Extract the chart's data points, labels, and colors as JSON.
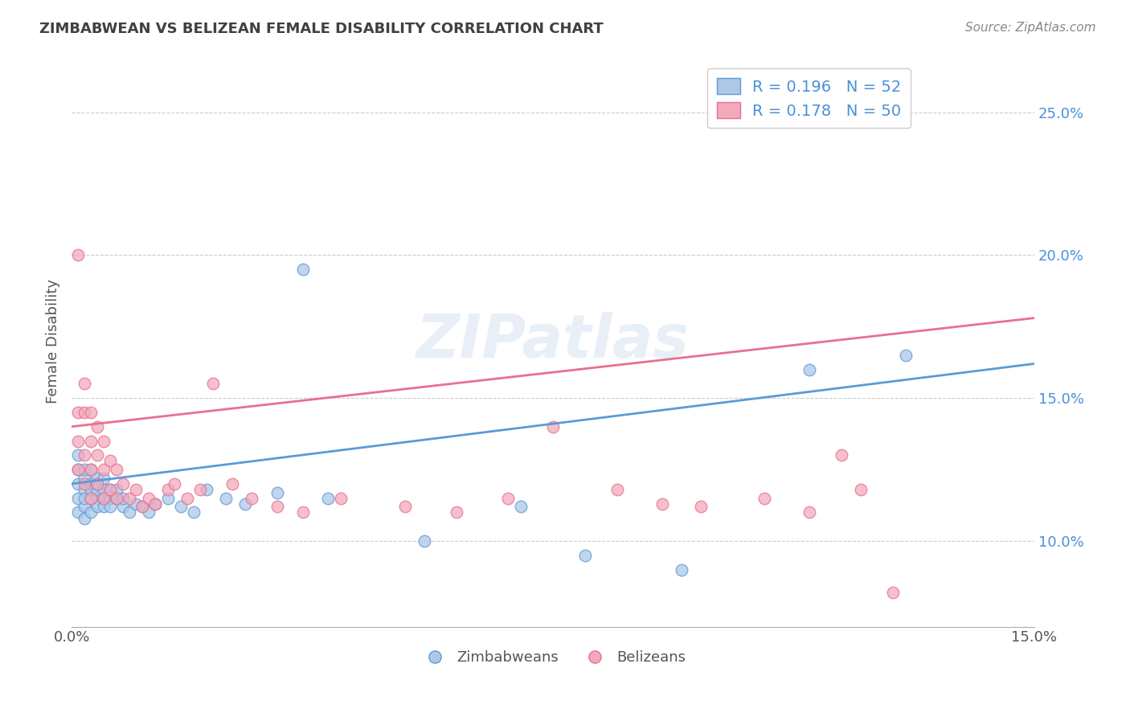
{
  "title": "ZIMBABWEAN VS BELIZEAN FEMALE DISABILITY CORRELATION CHART",
  "source": "Source: ZipAtlas.com",
  "ylabel": "Female Disability",
  "xlim": [
    0.0,
    0.15
  ],
  "ylim": [
    0.07,
    0.27
  ],
  "xticks": [
    0.0,
    0.03,
    0.06,
    0.09,
    0.12,
    0.15
  ],
  "xticklabels": [
    "0.0%",
    "",
    "",
    "",
    "",
    "15.0%"
  ],
  "yticks_right": [
    0.1,
    0.15,
    0.2,
    0.25
  ],
  "ytick_labels_right": [
    "10.0%",
    "15.0%",
    "20.0%",
    "25.0%"
  ],
  "legend_R1": "R = 0.196",
  "legend_N1": "N = 52",
  "legend_R2": "R = 0.178",
  "legend_N2": "N = 50",
  "color_blue": "#adc8e8",
  "color_pink": "#f2aabb",
  "color_blue_line": "#5b9bd5",
  "color_pink_line": "#e87090",
  "color_text_blue": "#4a90d9",
  "title_color": "#404040",
  "source_color": "#888888",
  "background_color": "#ffffff",
  "grid_color": "#cccccc",
  "watermark": "ZIPatlas",
  "blue_x": [
    0.001,
    0.001,
    0.001,
    0.001,
    0.001,
    0.002,
    0.002,
    0.002,
    0.002,
    0.002,
    0.002,
    0.003,
    0.003,
    0.003,
    0.003,
    0.003,
    0.004,
    0.004,
    0.004,
    0.004,
    0.004,
    0.005,
    0.005,
    0.005,
    0.005,
    0.006,
    0.006,
    0.006,
    0.007,
    0.007,
    0.008,
    0.008,
    0.009,
    0.01,
    0.011,
    0.012,
    0.013,
    0.015,
    0.017,
    0.019,
    0.021,
    0.024,
    0.027,
    0.032,
    0.036,
    0.04,
    0.055,
    0.07,
    0.08,
    0.095,
    0.115,
    0.13
  ],
  "blue_y": [
    0.12,
    0.125,
    0.115,
    0.11,
    0.13,
    0.122,
    0.118,
    0.125,
    0.112,
    0.108,
    0.115,
    0.12,
    0.115,
    0.125,
    0.11,
    0.118,
    0.122,
    0.115,
    0.118,
    0.112,
    0.12,
    0.115,
    0.112,
    0.118,
    0.122,
    0.115,
    0.118,
    0.112,
    0.115,
    0.118,
    0.112,
    0.115,
    0.11,
    0.113,
    0.112,
    0.11,
    0.113,
    0.115,
    0.112,
    0.11,
    0.118,
    0.115,
    0.113,
    0.117,
    0.195,
    0.115,
    0.1,
    0.112,
    0.095,
    0.09,
    0.16,
    0.165
  ],
  "pink_x": [
    0.001,
    0.001,
    0.001,
    0.001,
    0.002,
    0.002,
    0.002,
    0.002,
    0.003,
    0.003,
    0.003,
    0.003,
    0.004,
    0.004,
    0.004,
    0.005,
    0.005,
    0.005,
    0.006,
    0.006,
    0.007,
    0.007,
    0.008,
    0.009,
    0.01,
    0.011,
    0.012,
    0.013,
    0.015,
    0.016,
    0.018,
    0.02,
    0.022,
    0.025,
    0.028,
    0.032,
    0.036,
    0.042,
    0.052,
    0.06,
    0.068,
    0.075,
    0.085,
    0.092,
    0.098,
    0.108,
    0.115,
    0.12,
    0.123,
    0.128
  ],
  "pink_y": [
    0.2,
    0.145,
    0.135,
    0.125,
    0.155,
    0.145,
    0.13,
    0.12,
    0.145,
    0.135,
    0.125,
    0.115,
    0.14,
    0.13,
    0.12,
    0.135,
    0.125,
    0.115,
    0.128,
    0.118,
    0.125,
    0.115,
    0.12,
    0.115,
    0.118,
    0.112,
    0.115,
    0.113,
    0.118,
    0.12,
    0.115,
    0.118,
    0.155,
    0.12,
    0.115,
    0.112,
    0.11,
    0.115,
    0.112,
    0.11,
    0.115,
    0.14,
    0.118,
    0.113,
    0.112,
    0.115,
    0.11,
    0.13,
    0.118,
    0.082
  ],
  "blue_regression": [
    0.12,
    0.162
  ],
  "pink_regression": [
    0.14,
    0.178
  ]
}
